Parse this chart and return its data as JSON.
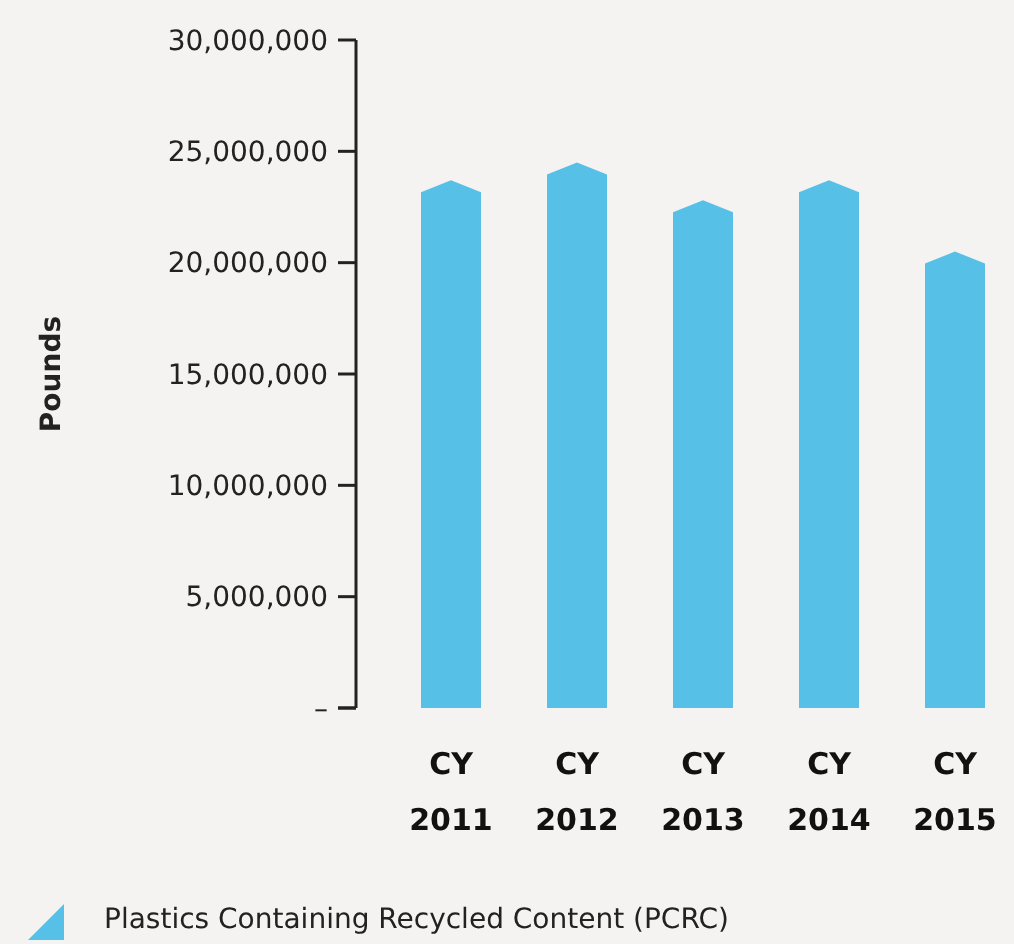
{
  "chart_data": {
    "type": "bar",
    "ylabel": "Pounds",
    "categories": [
      "CY\n2011",
      "CY\n2012",
      "CY\n2013",
      "CY\n2014",
      "CY\n2015"
    ],
    "series": [
      {
        "name": "Plastics Containing Recycled Content (PCRC)",
        "color": "#56c0e6",
        "values": [
          23700000,
          24500000,
          22800000,
          23700000,
          20500000
        ]
      }
    ],
    "ylim": [
      0,
      30000000
    ],
    "yticks": [
      {
        "value": 0,
        "label": "–"
      },
      {
        "value": 5000000,
        "label": "5,000,000"
      },
      {
        "value": 10000000,
        "label": "10,000,000"
      },
      {
        "value": 15000000,
        "label": "15,000,000"
      },
      {
        "value": 20000000,
        "label": "20,000,000"
      },
      {
        "value": 25000000,
        "label": "25,000,000"
      },
      {
        "value": 30000000,
        "label": "30,000,000"
      }
    ],
    "grid": false,
    "legend": "bottom left"
  }
}
